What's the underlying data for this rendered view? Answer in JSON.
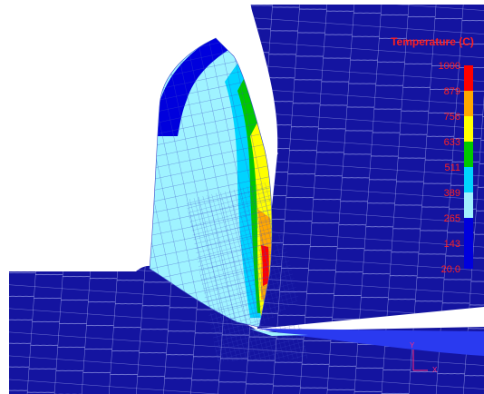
{
  "colors": {
    "background": "#ffffff",
    "mesh_line": "#c8d0ff",
    "base": "#1414a0",
    "chip_light": "#9ff3ff",
    "legend_text": "#ff2020",
    "axis": "#ff2a7a"
  },
  "legend": {
    "title": "Temperature (C)",
    "labels": [
      "1000",
      "879",
      "756",
      "633",
      "511",
      "389",
      "265",
      "143",
      "20.0"
    ],
    "colors": [
      "#ff0000",
      "#ffa800",
      "#ffff00",
      "#00c800",
      "#00d4ff",
      "#a0f0ff",
      "#0000dd",
      "#0000dd"
    ]
  },
  "axes": {
    "y_label": "Y",
    "x_label": "X"
  }
}
